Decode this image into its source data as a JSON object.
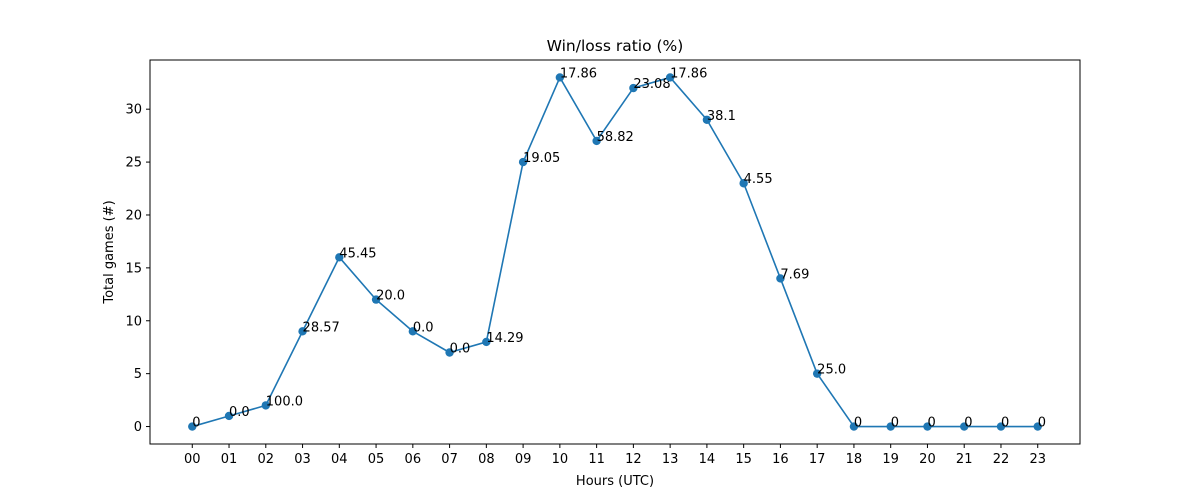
{
  "chart_data": {
    "type": "line",
    "title": "Win/loss ratio (%)",
    "xlabel": "Hours (UTC)",
    "ylabel": "Total games (#)",
    "x": [
      "00",
      "01",
      "02",
      "03",
      "04",
      "05",
      "06",
      "07",
      "08",
      "09",
      "10",
      "11",
      "12",
      "13",
      "14",
      "15",
      "16",
      "17",
      "18",
      "19",
      "20",
      "21",
      "22",
      "23"
    ],
    "series": [
      {
        "values": [
          0,
          1,
          2,
          9,
          16,
          12,
          9,
          7,
          8,
          25,
          33,
          27,
          32,
          33,
          29,
          23,
          14,
          5,
          0,
          0,
          0,
          0,
          0,
          0
        ],
        "labels": [
          "0",
          "0.0",
          "100.0",
          "28.57",
          "45.45",
          "20.0",
          "0.0",
          "0.0",
          "14.29",
          "19.05",
          "17.86",
          "58.82",
          "23.08",
          "17.86",
          "38.1",
          "4.55",
          "7.69",
          "25.0",
          "0",
          "0",
          "0",
          "0",
          "0",
          "0"
        ],
        "color": "#1f77b4"
      }
    ],
    "ylim": [
      -1.65,
      34.65
    ],
    "yticks": [
      0,
      5,
      10,
      15,
      20,
      25,
      30
    ],
    "grid": false,
    "legend": "none"
  }
}
